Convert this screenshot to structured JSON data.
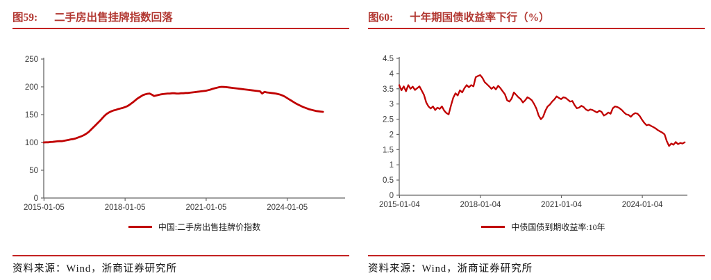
{
  "colors": {
    "accent_red": "#c00000",
    "title_red": "#b23832",
    "rule_red": "#c32222",
    "axis_gray": "#666666",
    "tick_text": "#3a3a3a",
    "source_text": "#111111"
  },
  "figures": [
    {
      "label": "图59:",
      "title": "二手房出售挂牌指数回落",
      "legend": "中国:二手房出售挂牌价指数",
      "source": "资料来源：Wind，浙商证券研究所"
    },
    {
      "label": "图60:",
      "title": "十年期国债收益率下行（%）",
      "legend": "中债国债到期收益率:10年",
      "source": "资料来源：Wind，浙商证券研究所"
    }
  ],
  "chart_data": [
    {
      "type": "line",
      "title": "二手房出售挂牌指数回落",
      "legend_position": "bottom-center",
      "grid": false,
      "xlabel": "",
      "ylabel": "",
      "xlim": [
        2015.0,
        2026.15
      ],
      "ylim": [
        0,
        250
      ],
      "yticks": [
        {
          "v": 0,
          "label": "0"
        },
        {
          "v": 50,
          "label": "50"
        },
        {
          "v": 100,
          "label": "100"
        },
        {
          "v": 150,
          "label": "150"
        },
        {
          "v": 200,
          "label": "200"
        },
        {
          "v": 250,
          "label": "250"
        }
      ],
      "xticks": [
        {
          "v": 2015.01,
          "label": "2015-01-05"
        },
        {
          "v": 2018.01,
          "label": "2018-01-05"
        },
        {
          "v": 2021.01,
          "label": "2021-01-05"
        },
        {
          "v": 2024.01,
          "label": "2024-01-05"
        }
      ],
      "line_color": "#c00000",
      "line_width": 2.8,
      "series": [
        {
          "name": "中国:二手房出售挂牌价指数",
          "x_start": 2015.0,
          "x_step": 0.08333,
          "values": [
            100,
            100.3,
            100.2,
            100.8,
            101,
            101.5,
            102,
            102.3,
            102.2,
            103,
            103.8,
            104.5,
            105.5,
            106,
            107,
            108.5,
            110,
            111.5,
            113.5,
            116,
            119,
            123,
            127,
            131,
            135,
            139,
            143.5,
            148,
            151.5,
            154,
            156,
            157.5,
            158.5,
            160,
            161,
            162,
            163.5,
            165,
            167.5,
            170.5,
            173.5,
            177,
            180,
            182.5,
            185,
            186.5,
            187.5,
            188,
            186,
            183.5,
            184.5,
            185.5,
            186.5,
            187,
            187.5,
            188,
            188,
            188.5,
            188.5,
            188,
            188,
            188.5,
            188.5,
            189,
            189,
            189.5,
            190,
            190.5,
            191,
            191.5,
            192,
            192.5,
            193,
            194,
            195,
            196.5,
            197.5,
            198.5,
            199.5,
            200,
            199.8,
            199.5,
            199,
            198.5,
            198,
            197.5,
            197,
            196.5,
            196,
            195.5,
            195,
            194.5,
            194,
            193.5,
            193,
            192.5,
            192,
            188,
            191,
            190,
            189.5,
            189,
            188.5,
            188,
            187,
            186,
            184.5,
            182.5,
            180,
            177.5,
            175,
            172.5,
            170,
            168,
            166,
            164,
            162.5,
            161,
            159.5,
            158.5,
            157.5,
            156.5,
            156,
            155.5,
            155
          ]
        }
      ]
    },
    {
      "type": "line",
      "title": "十年期国债收益率下行（%）",
      "legend_position": "bottom-center",
      "grid": false,
      "xlabel": "",
      "ylabel": "",
      "xlim": [
        2015.0,
        2025.68
      ],
      "ylim": [
        0,
        4.5
      ],
      "yticks": [
        {
          "v": 0,
          "label": "0"
        },
        {
          "v": 0.5,
          "label": "0.5"
        },
        {
          "v": 1,
          "label": "1"
        },
        {
          "v": 1.5,
          "label": "1.5"
        },
        {
          "v": 2,
          "label": "2"
        },
        {
          "v": 2.5,
          "label": "2.5"
        },
        {
          "v": 3,
          "label": "3"
        },
        {
          "v": 3.5,
          "label": "3.5"
        },
        {
          "v": 4,
          "label": "4"
        },
        {
          "v": 4.5,
          "label": "4.5"
        }
      ],
      "xticks": [
        {
          "v": 2015.01,
          "label": "2015-01-04"
        },
        {
          "v": 2018.01,
          "label": "2018-01-04"
        },
        {
          "v": 2021.01,
          "label": "2021-01-04"
        },
        {
          "v": 2024.01,
          "label": "2024-01-04"
        }
      ],
      "line_color": "#c00000",
      "line_width": 2.3,
      "series": [
        {
          "name": "中债国债到期收益率:10年",
          "x_start": 2015.0,
          "x_step": 0.08333,
          "values": [
            3.62,
            3.45,
            3.58,
            3.42,
            3.62,
            3.5,
            3.57,
            3.46,
            3.52,
            3.58,
            3.44,
            3.3,
            3.05,
            2.92,
            2.85,
            2.92,
            2.8,
            2.88,
            2.84,
            2.92,
            2.78,
            2.7,
            2.66,
            2.95,
            3.2,
            3.35,
            3.28,
            3.45,
            3.38,
            3.52,
            3.62,
            3.55,
            3.62,
            3.58,
            3.88,
            3.92,
            3.95,
            3.86,
            3.72,
            3.65,
            3.58,
            3.5,
            3.56,
            3.48,
            3.6,
            3.52,
            3.42,
            3.32,
            3.12,
            3.08,
            3.18,
            3.38,
            3.3,
            3.22,
            3.16,
            3.05,
            3.12,
            3.22,
            3.18,
            3.12,
            3.0,
            2.85,
            2.62,
            2.5,
            2.58,
            2.78,
            2.92,
            2.98,
            3.08,
            3.15,
            3.25,
            3.2,
            3.16,
            3.22,
            3.2,
            3.14,
            3.08,
            3.1,
            2.96,
            2.86,
            2.88,
            2.94,
            2.9,
            2.82,
            2.78,
            2.82,
            2.8,
            2.76,
            2.72,
            2.78,
            2.74,
            2.62,
            2.66,
            2.72,
            2.68,
            2.86,
            2.92,
            2.9,
            2.86,
            2.8,
            2.72,
            2.66,
            2.64,
            2.58,
            2.66,
            2.7,
            2.68,
            2.6,
            2.48,
            2.38,
            2.3,
            2.32,
            2.28,
            2.24,
            2.2,
            2.14,
            2.1,
            2.06,
            2.0,
            1.78,
            1.62,
            1.7,
            1.66,
            1.75,
            1.68,
            1.72,
            1.7,
            1.74
          ]
        }
      ]
    }
  ]
}
